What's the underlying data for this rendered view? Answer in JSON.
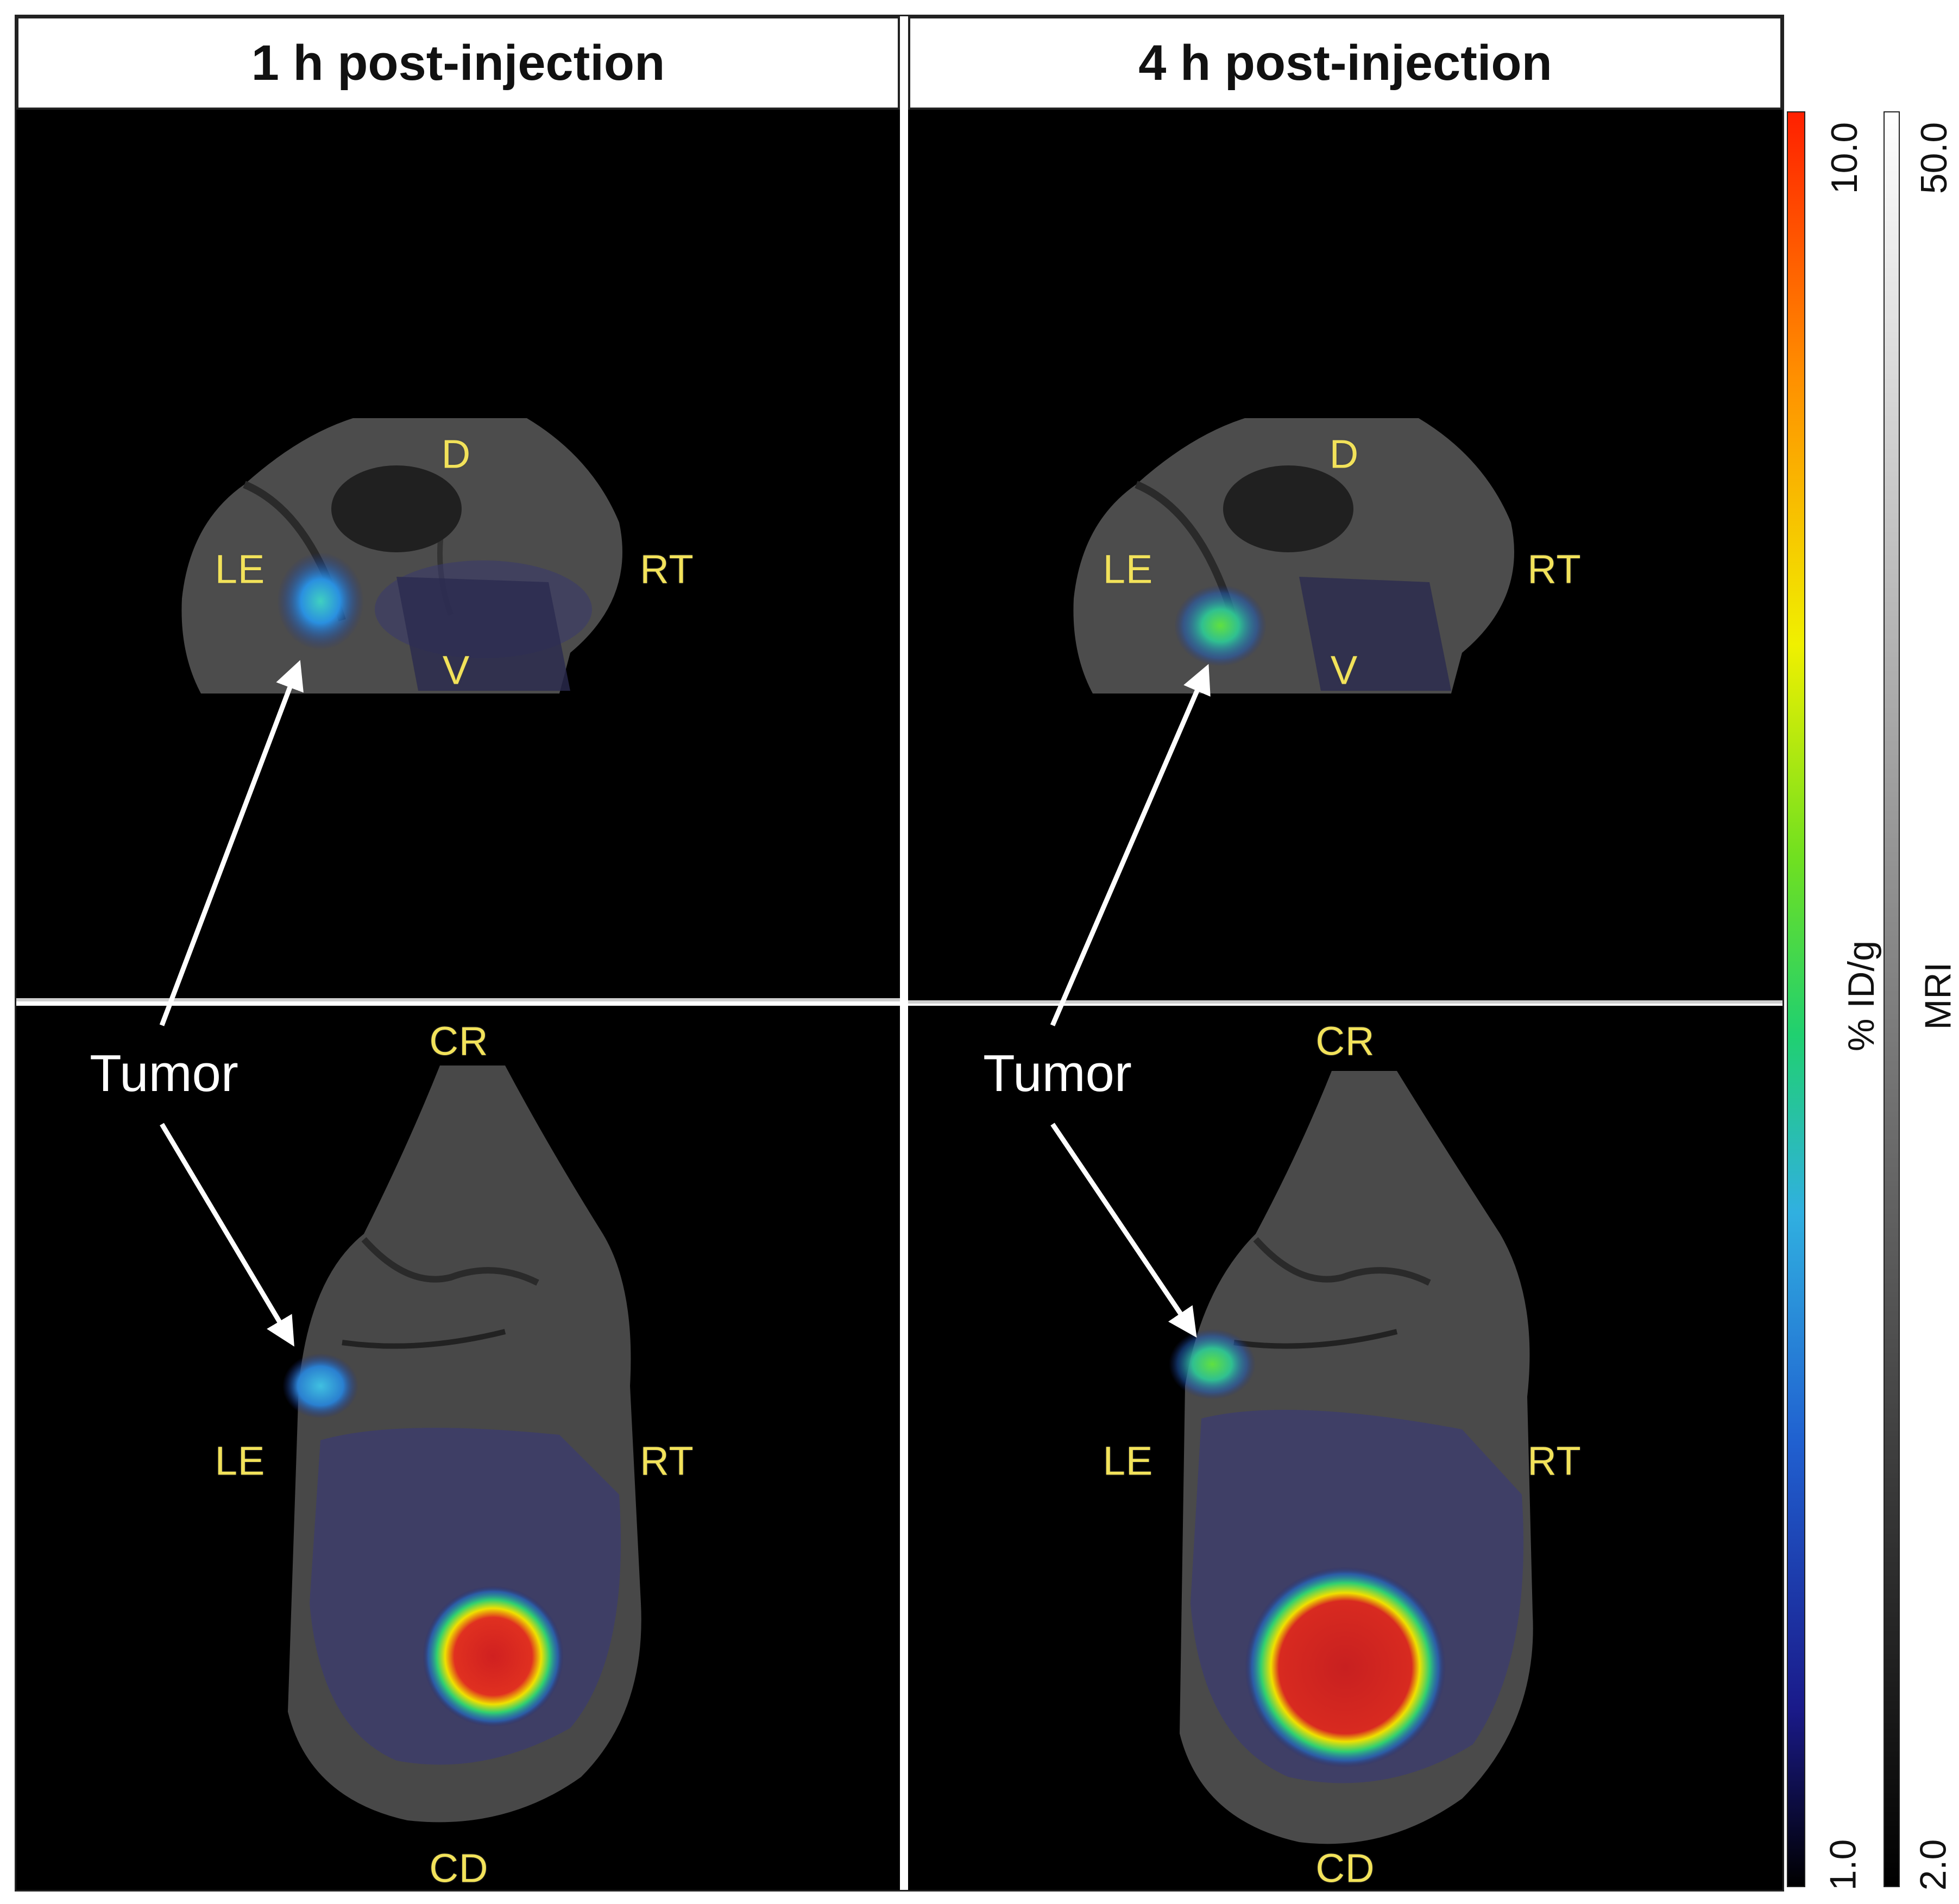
{
  "headers": {
    "col1": "1 h post-injection",
    "col2": "4 h post-injection"
  },
  "orientation": {
    "dorsal": "D",
    "ventral": "V",
    "left": "LE",
    "right": "RT",
    "cranial": "CR",
    "caudal": "CD"
  },
  "annotations": {
    "tumor": "Tumor"
  },
  "pet_scale": {
    "label": "% ID/g",
    "max": "10.0",
    "min": "1.0",
    "colors": [
      "#000000",
      "#1a1a8a",
      "#2060d0",
      "#30b0e0",
      "#20d070",
      "#70e020",
      "#f0f000",
      "#ff9000",
      "#ff2000"
    ]
  },
  "mri_scale": {
    "label": "MRI",
    "max": "50.0",
    "min": "2.0",
    "colors": [
      "#000000",
      "#ffffff"
    ]
  }
}
